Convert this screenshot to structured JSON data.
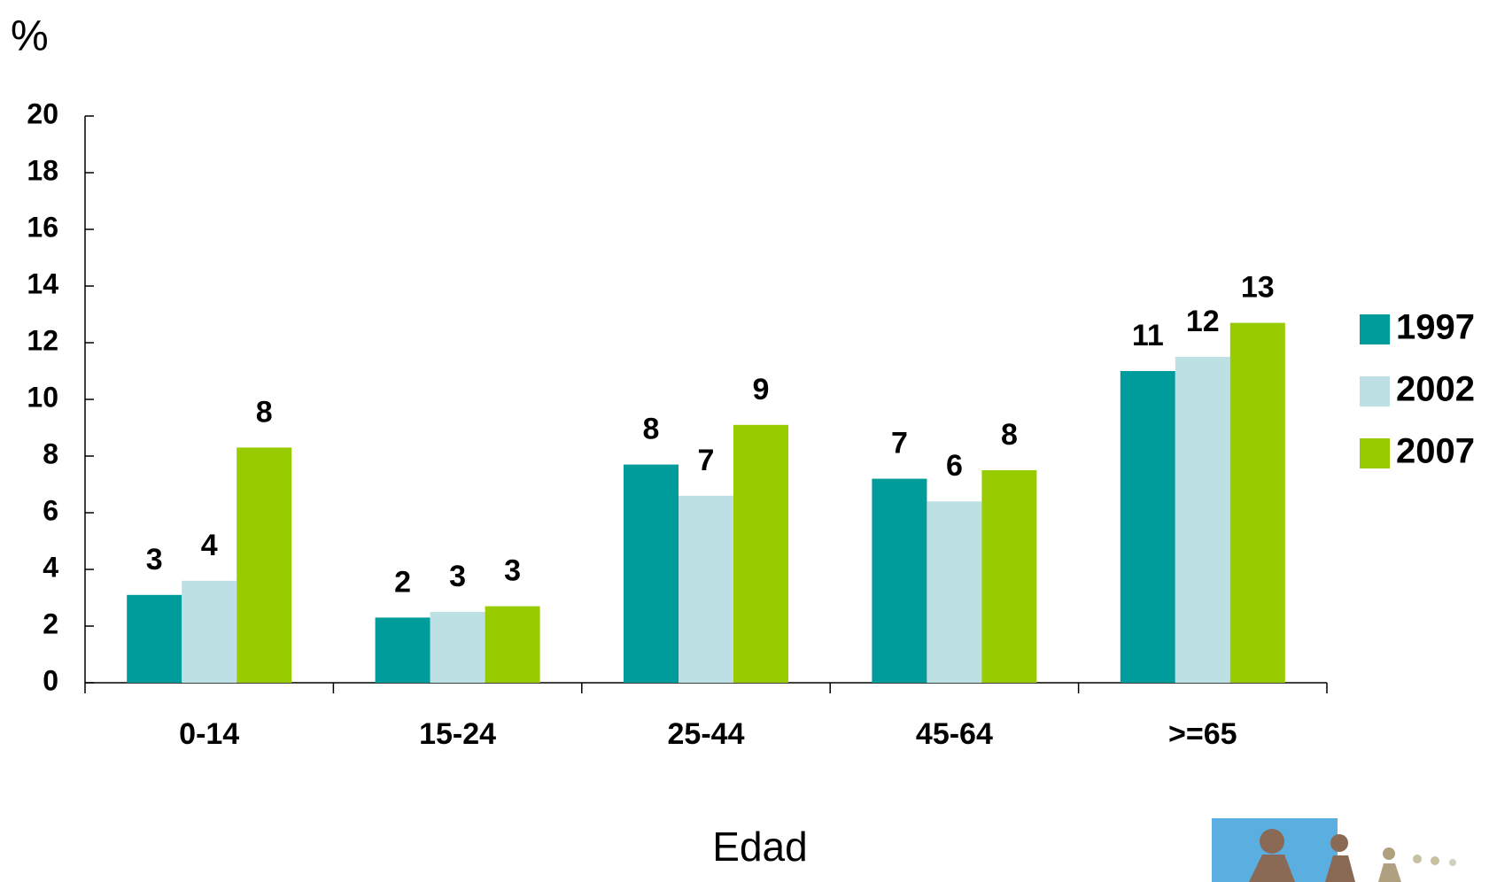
{
  "chart_data": {
    "type": "bar",
    "y_label": "%",
    "x_label": "Edad",
    "categories": [
      "0-14",
      "15-24",
      "25-44",
      "45-64",
      ">=65"
    ],
    "series": [
      {
        "name": "1997",
        "color": "#009b9b",
        "values": [
          3.1,
          2.3,
          7.7,
          7.2,
          11.0
        ],
        "value_labels": [
          "3",
          "2",
          "8",
          "7",
          "11"
        ]
      },
      {
        "name": "2002",
        "color": "#bde0e5",
        "values": [
          3.6,
          2.5,
          6.6,
          6.4,
          11.5
        ],
        "value_labels": [
          "4",
          "3",
          "7",
          "6",
          "12"
        ]
      },
      {
        "name": "2007",
        "color": "#99cc00",
        "values": [
          8.3,
          2.7,
          9.1,
          7.5,
          12.7
        ],
        "value_labels": [
          "8",
          "3",
          "9",
          "8",
          "13"
        ]
      }
    ],
    "ylim": [
      0,
      20
    ],
    "yticks": [
      0,
      2,
      4,
      6,
      8,
      10,
      12,
      14,
      16,
      18,
      20
    ],
    "legend": "right"
  }
}
